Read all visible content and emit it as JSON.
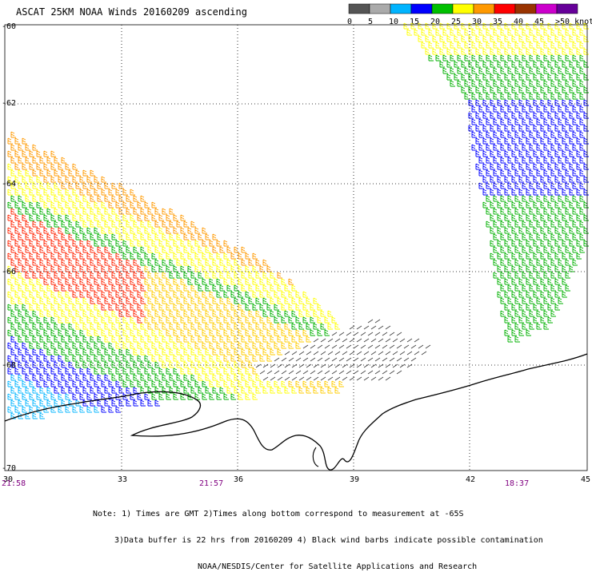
{
  "title": "ASCAT 25KM NOAA Winds 20160209 ascending",
  "colorbar": {
    "ticks": [
      "0",
      "5",
      "10",
      "15",
      "20",
      "25",
      "30",
      "35",
      "40",
      "45",
      ">50 knots"
    ],
    "colors": [
      "#555555",
      "#aaaaaa",
      "#00b4ff",
      "#0000ff",
      "#00c000",
      "#ffff00",
      "#ff9900",
      "#ff0000",
      "#993300",
      "#cc00cc",
      "#660099"
    ]
  },
  "map": {
    "lat_labels": [
      "-60",
      "-62",
      "-64",
      "-66",
      "-68",
      "-70"
    ],
    "lon_labels": [
      "30",
      "33",
      "36",
      "39",
      "42",
      "45"
    ],
    "time_labels": [
      "21:58",
      "21:57",
      "18:37"
    ]
  },
  "notes": {
    "line1": "Note: 1) Times are GMT 2)Times along bottom correspond to measurement at -65S",
    "line2": "3)Data buffer is 22 hrs from 20160209 4) Black wind barbs indicate possible contamination",
    "line3": "NOAA/NESDIS/Center for Satellite Applications and Research"
  }
}
